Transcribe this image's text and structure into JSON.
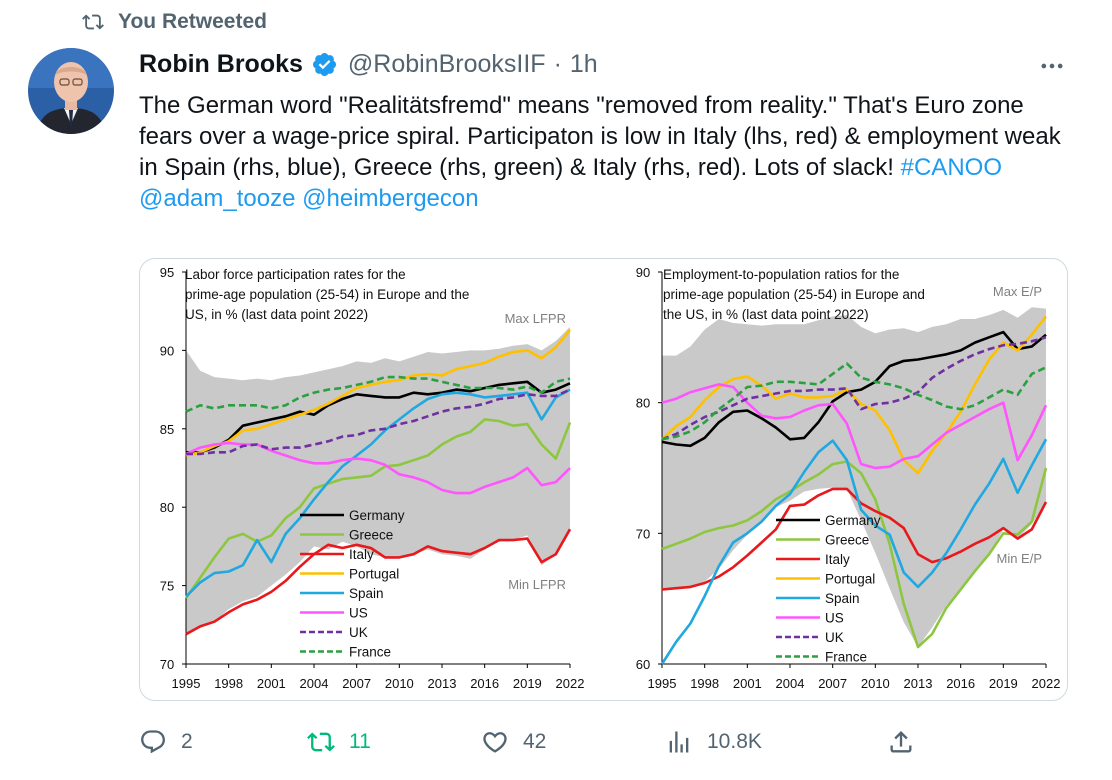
{
  "retweet_banner": {
    "icon": "retweet-icon",
    "label": "You Retweeted"
  },
  "author": {
    "name": "Robin Brooks",
    "verified": true,
    "handle": "@RobinBrooksIIF",
    "separator": "·",
    "time": "1h"
  },
  "more_icon": "more-icon",
  "tweet": {
    "t1": "The German word \"Realitätsfremd\" means \"removed from reality.\" That's Euro zone fears over a wage-price spiral. Participaton is low in Italy (lhs, red) & employment weak in Spain (rhs, blue), Greece (rhs, green) & Italy (rhs, red). Lots of slack! ",
    "hashtag": "#CANOO",
    "mention1": "@adam_tooze",
    "mention2": "@heimbergecon"
  },
  "actions": {
    "reply_count": "2",
    "retweet_count": "11",
    "like_count": "42",
    "view_count": "10.8K"
  },
  "colors": {
    "Germany": "#000000",
    "Greece": "#8dc63f",
    "Italy": "#e8191d",
    "Portugal": "#ffc000",
    "Spain": "#20a8e0",
    "US": "#ff55ff",
    "UK": "#7030a0",
    "France": "#2aa040",
    "band": "#c9c9c9"
  },
  "chart_data": [
    {
      "type": "line",
      "title": "Labor force participation rates for the prime-age population (25-54) in Europe and the US, in % (last data point 2022)",
      "band_max_label": "Max LFPR",
      "band_min_label": "Min LFPR",
      "ylim": [
        70,
        95
      ],
      "yticks": [
        "70",
        "75",
        "80",
        "85",
        "90",
        "95"
      ],
      "xticks": [
        "1995",
        "1998",
        "2001",
        "2004",
        "2007",
        "2010",
        "2013",
        "2016",
        "2019",
        "2022"
      ],
      "x": [
        1995,
        1996,
        1997,
        1998,
        1999,
        2000,
        2001,
        2002,
        2003,
        2004,
        2005,
        2006,
        2007,
        2008,
        2009,
        2010,
        2011,
        2012,
        2013,
        2014,
        2015,
        2016,
        2017,
        2018,
        2019,
        2020,
        2021,
        2022
      ],
      "band_max": [
        90,
        88.7,
        88.3,
        88.2,
        88.1,
        88.2,
        88.1,
        88.3,
        88.4,
        88.6,
        88.8,
        89.0,
        89.3,
        89.2,
        89.5,
        89.3,
        89.6,
        89.9,
        89.8,
        89.9,
        90.0,
        90.0,
        90.1,
        90.3,
        90.4,
        90.0,
        90.6,
        91.5
      ],
      "band_min": [
        71.8,
        72.3,
        72.7,
        73.5,
        74.0,
        74.3,
        75.0,
        75.7,
        76.5,
        77.5,
        77.3,
        77.8,
        77.5,
        77.0,
        76.8,
        76.8,
        77.0,
        77.3,
        77.0,
        76.9,
        76.7,
        77.3,
        77.8,
        77.9,
        78.2,
        76.3,
        77.0,
        78.5
      ],
      "series": [
        {
          "name": "Germany",
          "dash": false,
          "values": [
            83.5,
            83.5,
            83.8,
            84.3,
            85.2,
            85.4,
            85.6,
            85.8,
            86.1,
            85.9,
            86.5,
            86.9,
            87.2,
            87.1,
            87.0,
            87.0,
            87.3,
            87.2,
            87.3,
            87.5,
            87.4,
            87.6,
            87.8,
            87.9,
            88.0,
            87.3,
            87.5,
            87.9
          ]
        },
        {
          "name": "Greece",
          "dash": false,
          "values": [
            74.2,
            75.5,
            76.8,
            78.0,
            78.3,
            77.8,
            78.2,
            79.3,
            80.0,
            81.2,
            81.5,
            81.8,
            81.9,
            82.0,
            82.6,
            82.7,
            83.0,
            83.3,
            84.0,
            84.5,
            84.8,
            85.6,
            85.5,
            85.2,
            85.3,
            84.0,
            83.1,
            85.4
          ]
        },
        {
          "name": "Italy",
          "dash": false,
          "values": [
            71.9,
            72.4,
            72.7,
            73.3,
            73.8,
            74.1,
            74.6,
            75.3,
            76.2,
            77.0,
            77.6,
            77.4,
            77.6,
            77.4,
            76.8,
            76.8,
            77.0,
            77.5,
            77.2,
            77.1,
            77.0,
            77.4,
            77.9,
            77.9,
            78.0,
            76.5,
            77.0,
            78.6
          ]
        },
        {
          "name": "Portugal",
          "dash": false,
          "values": [
            83.3,
            83.5,
            83.9,
            84.2,
            84.9,
            85.0,
            85.3,
            85.6,
            85.9,
            86.2,
            86.6,
            87.1,
            87.6,
            87.8,
            88.0,
            88.1,
            88.4,
            88.5,
            88.4,
            88.8,
            89.0,
            89.2,
            89.6,
            89.9,
            90.0,
            89.5,
            90.2,
            91.3
          ]
        },
        {
          "name": "Spain",
          "dash": false,
          "values": [
            74.3,
            75.2,
            75.8,
            75.9,
            76.3,
            77.9,
            76.5,
            78.3,
            79.3,
            80.5,
            81.6,
            82.6,
            83.3,
            84.0,
            84.9,
            85.6,
            86.3,
            86.9,
            87.2,
            87.3,
            87.2,
            87.0,
            87.1,
            87.2,
            87.3,
            85.6,
            87.0,
            87.5
          ]
        },
        {
          "name": "US",
          "dash": false,
          "values": [
            83.4,
            83.8,
            84.0,
            84.1,
            84.0,
            84.0,
            83.6,
            83.3,
            83.0,
            82.8,
            82.8,
            83.0,
            83.1,
            83.0,
            82.7,
            82.1,
            81.9,
            81.6,
            81.1,
            80.9,
            80.9,
            81.3,
            81.6,
            81.9,
            82.5,
            81.4,
            81.6,
            82.5
          ]
        },
        {
          "name": "UK",
          "dash": true,
          "values": [
            83.4,
            83.4,
            83.5,
            83.5,
            83.9,
            84.0,
            83.7,
            83.8,
            83.8,
            84.0,
            84.2,
            84.5,
            84.6,
            84.9,
            85.0,
            85.3,
            85.5,
            85.8,
            86.1,
            86.3,
            86.4,
            86.6,
            86.9,
            87.0,
            87.2,
            87.1,
            87.1,
            87.5
          ]
        },
        {
          "name": "France",
          "dash": true,
          "values": [
            86.1,
            86.5,
            86.3,
            86.5,
            86.5,
            86.5,
            86.3,
            86.5,
            87.0,
            87.3,
            87.5,
            87.6,
            87.8,
            88.0,
            88.3,
            88.3,
            88.2,
            88.2,
            88.0,
            87.8,
            87.6,
            87.6,
            87.6,
            87.5,
            87.7,
            87.3,
            88.0,
            88.2
          ]
        }
      ]
    },
    {
      "type": "line",
      "title": "Employment-to-population ratios for the prime-age population (25-54) in Europe and the US, in % (last data point 2022)",
      "band_max_label": "Max E/P",
      "band_min_label": "Min E/P",
      "ylim": [
        60,
        90
      ],
      "yticks": [
        "60",
        "70",
        "80",
        "90"
      ],
      "xticks": [
        "1995",
        "1998",
        "2001",
        "2004",
        "2007",
        "2010",
        "2013",
        "2016",
        "2019",
        "2022"
      ],
      "x": [
        1995,
        1996,
        1997,
        1998,
        1999,
        2000,
        2001,
        2002,
        2003,
        2004,
        2005,
        2006,
        2007,
        2008,
        2009,
        2010,
        2011,
        2012,
        2013,
        2014,
        2015,
        2016,
        2017,
        2018,
        2019,
        2020,
        2021,
        2022
      ],
      "band_max": [
        83.6,
        83.6,
        84.3,
        85.6,
        86.4,
        86.1,
        86.0,
        85.9,
        86.0,
        86.0,
        86.0,
        86.3,
        86.6,
        86.7,
        85.8,
        85.3,
        85.6,
        85.7,
        85.4,
        85.8,
        86.0,
        86.4,
        86.4,
        86.7,
        87.1,
        86.5,
        87.3,
        87.2
      ],
      "band_min": [
        65.6,
        65.9,
        65.8,
        66.3,
        67.3,
        68.7,
        69.9,
        70.9,
        72.0,
        72.5,
        73.2,
        73.4,
        73.5,
        73.4,
        71.0,
        68.5,
        65.8,
        63.2,
        61.3,
        62.8,
        64.5,
        65.6,
        67.0,
        68.4,
        70.3,
        69.6,
        70.7,
        72.3
      ],
      "series": [
        {
          "name": "Germany",
          "dash": false,
          "values": [
            77.0,
            76.8,
            76.7,
            77.3,
            78.5,
            79.3,
            79.4,
            78.8,
            78.1,
            77.2,
            77.3,
            78.5,
            80.1,
            80.8,
            81.0,
            81.6,
            82.8,
            83.2,
            83.3,
            83.5,
            83.7,
            84.0,
            84.6,
            85.0,
            85.4,
            84.1,
            84.3,
            85.2
          ]
        },
        {
          "name": "Greece",
          "dash": false,
          "values": [
            68.8,
            69.2,
            69.6,
            70.1,
            70.4,
            70.6,
            71.0,
            71.7,
            72.6,
            73.2,
            73.9,
            74.5,
            75.3,
            75.5,
            74.6,
            72.6,
            69.2,
            64.6,
            61.3,
            62.3,
            64.3,
            65.7,
            67.1,
            68.4,
            70.0,
            69.9,
            70.9,
            75.0
          ]
        },
        {
          "name": "Italy",
          "dash": false,
          "values": [
            65.7,
            65.8,
            65.9,
            66.2,
            66.7,
            67.4,
            68.3,
            69.3,
            70.3,
            72.1,
            72.2,
            72.9,
            73.4,
            73.4,
            72.3,
            71.7,
            71.2,
            70.4,
            68.4,
            67.8,
            68.1,
            68.6,
            69.2,
            69.7,
            70.4,
            69.6,
            70.3,
            72.4
          ]
        },
        {
          "name": "Portugal",
          "dash": false,
          "values": [
            77.2,
            78.2,
            78.9,
            80.2,
            81.2,
            81.8,
            82.0,
            81.3,
            80.3,
            80.7,
            80.4,
            80.4,
            80.5,
            81.0,
            79.9,
            79.4,
            77.9,
            75.6,
            74.6,
            76.3,
            77.7,
            79.3,
            81.4,
            83.3,
            84.6,
            84.0,
            85.2,
            86.6
          ]
        },
        {
          "name": "Spain",
          "dash": false,
          "values": [
            60.0,
            61.7,
            63.1,
            65.2,
            67.5,
            69.3,
            70.0,
            70.9,
            72.1,
            73.0,
            74.7,
            76.2,
            77.1,
            75.6,
            71.8,
            70.6,
            69.9,
            67.0,
            65.9,
            67.0,
            68.5,
            70.3,
            72.2,
            73.8,
            75.7,
            73.1,
            75.2,
            77.2
          ]
        },
        {
          "name": "US",
          "dash": false,
          "values": [
            80.0,
            80.3,
            80.8,
            81.1,
            81.4,
            81.2,
            80.0,
            79.0,
            78.8,
            78.9,
            79.4,
            79.8,
            79.9,
            78.4,
            75.3,
            75.0,
            75.1,
            75.7,
            75.9,
            76.8,
            77.7,
            78.3,
            78.9,
            79.5,
            80.0,
            75.6,
            77.5,
            79.8
          ]
        },
        {
          "name": "UK",
          "dash": true,
          "values": [
            77.2,
            77.6,
            78.3,
            78.9,
            79.3,
            79.8,
            80.3,
            80.5,
            80.7,
            80.9,
            80.9,
            81.0,
            81.0,
            81.1,
            79.5,
            79.9,
            80.0,
            80.3,
            80.8,
            81.9,
            82.6,
            83.2,
            83.7,
            84.1,
            84.4,
            84.5,
            84.7,
            85.0
          ]
        },
        {
          "name": "France",
          "dash": true,
          "values": [
            77.2,
            77.4,
            77.8,
            78.5,
            79.5,
            80.3,
            81.2,
            81.3,
            81.6,
            81.6,
            81.5,
            81.4,
            82.2,
            83.0,
            81.9,
            81.6,
            81.4,
            81.1,
            80.6,
            80.2,
            79.7,
            79.5,
            79.8,
            80.4,
            81.0,
            80.6,
            82.2,
            82.7
          ]
        }
      ]
    }
  ]
}
